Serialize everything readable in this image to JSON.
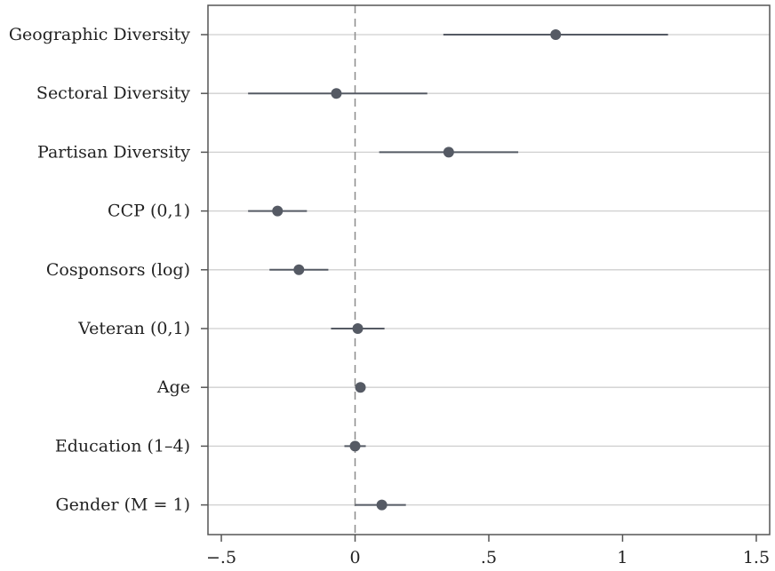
{
  "chart_data": {
    "type": "coefficient-plot",
    "orientation": "horizontal",
    "categories": [
      "Geographic Diversity",
      "Sectoral Diversity",
      "Partisan Diversity",
      "CCP (0,1)",
      "Cosponsors (log)",
      "Veteran (0,1)",
      "Age",
      "Education (1–4)",
      "Gender (M = 1)"
    ],
    "estimates": [
      0.75,
      -0.07,
      0.35,
      -0.29,
      -0.21,
      0.01,
      0.02,
      0.0,
      0.1
    ],
    "ci_low": [
      0.33,
      -0.4,
      0.09,
      -0.4,
      -0.32,
      -0.09,
      0.01,
      -0.04,
      0.0
    ],
    "ci_high": [
      1.17,
      0.27,
      0.61,
      -0.18,
      -0.1,
      0.11,
      0.03,
      0.04,
      0.19
    ],
    "xlim": [
      -0.55,
      1.55
    ],
    "xticks": [
      -0.5,
      0,
      0.5,
      1,
      1.5
    ],
    "xtick_labels": [
      "−.5",
      "0",
      ".5",
      "1",
      "1.5"
    ],
    "reference_line": 0,
    "grid": "horizontal",
    "colors": {
      "marker": "#555a64",
      "ci_line": "#555a64",
      "grid": "#cfcfcf",
      "reference": "#8c8c8c",
      "axis": "#555555"
    }
  }
}
